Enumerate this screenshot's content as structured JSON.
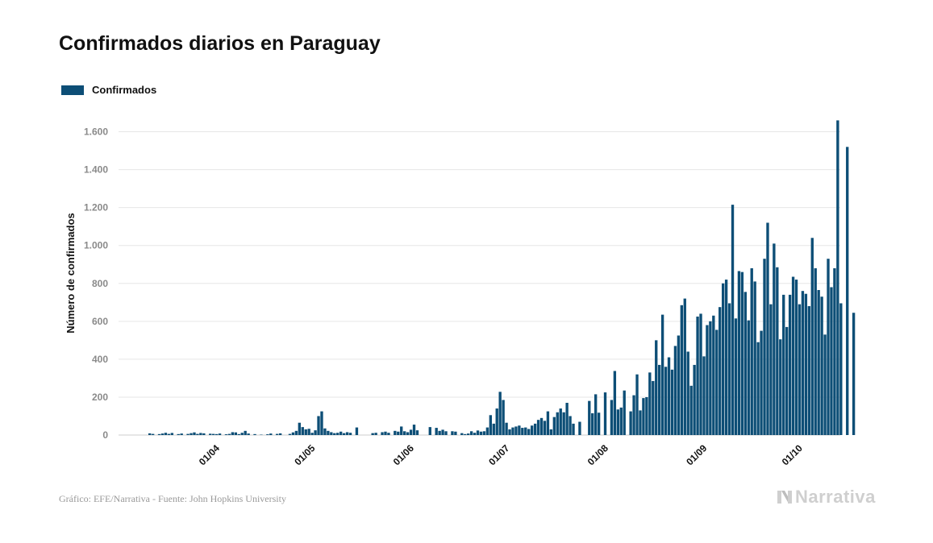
{
  "chart_data": {
    "type": "bar",
    "title": "Confirmados diarios en Paraguay",
    "ylabel": "Número de confirmados",
    "xlabel": "",
    "ylim": [
      0,
      1700
    ],
    "yticks": [
      0,
      200,
      400,
      600,
      800,
      1000,
      1200,
      1400,
      1600
    ],
    "ytick_labels": [
      "0",
      "200",
      "400",
      "600",
      "800",
      "1.000",
      "1.200",
      "1.400",
      "1.600"
    ],
    "x_start": "2020-03-10",
    "xticks": [
      {
        "date": "2020-04-01",
        "label": "01/04"
      },
      {
        "date": "2020-05-01",
        "label": "01/05"
      },
      {
        "date": "2020-06-01",
        "label": "01/06"
      },
      {
        "date": "2020-07-01",
        "label": "01/07"
      },
      {
        "date": "2020-08-01",
        "label": "01/08"
      },
      {
        "date": "2020-09-01",
        "label": "01/09"
      },
      {
        "date": "2020-10-01",
        "label": "01/10"
      }
    ],
    "grid": true,
    "legend_position": "top-left",
    "color": "#0d4e76",
    "series": [
      {
        "name": "Confirmados",
        "values": [
          9,
          6,
          0,
          5,
          8,
          12,
          6,
          11,
          0,
          5,
          8,
          0,
          6,
          10,
          14,
          6,
          11,
          9,
          0,
          7,
          6,
          5,
          8,
          0,
          4,
          6,
          15,
          14,
          5,
          12,
          22,
          8,
          0,
          5,
          0,
          2,
          0,
          4,
          8,
          0,
          6,
          9,
          0,
          0,
          6,
          14,
          22,
          65,
          42,
          30,
          33,
          12,
          25,
          100,
          125,
          35,
          22,
          15,
          10,
          12,
          18,
          10,
          15,
          12,
          0,
          40,
          0,
          0,
          0,
          0,
          10,
          12,
          0,
          15,
          18,
          12,
          0,
          22,
          18,
          45,
          20,
          15,
          28,
          55,
          25,
          0,
          0,
          0,
          42,
          0,
          38,
          22,
          28,
          20,
          0,
          20,
          18,
          0,
          10,
          5,
          8,
          20,
          12,
          24,
          18,
          20,
          40,
          105,
          60,
          140,
          228,
          185,
          65,
          30,
          40,
          45,
          50,
          38,
          40,
          32,
          50,
          60,
          80,
          90,
          75,
          125,
          30,
          95,
          120,
          140,
          120,
          170,
          100,
          60,
          0,
          70,
          0,
          0,
          180,
          115,
          215,
          118,
          0,
          225,
          0,
          185,
          338,
          135,
          145,
          235,
          0,
          125,
          210,
          320,
          130,
          195,
          200,
          330,
          285,
          500,
          370,
          635,
          360,
          410,
          345,
          470,
          525,
          685,
          720,
          440,
          260,
          370,
          625,
          640,
          415,
          580,
          600,
          630,
          555,
          675,
          800,
          820,
          695,
          1215,
          615,
          865,
          860,
          755,
          605,
          880,
          810,
          490,
          550,
          930,
          1120,
          690,
          1010,
          885,
          505,
          740,
          570,
          740,
          835,
          820,
          690,
          760,
          745,
          680,
          1040,
          880,
          765,
          730,
          530,
          930,
          780,
          880,
          1660,
          695,
          0,
          1520,
          0,
          645
        ]
      }
    ]
  },
  "legend": {
    "label": "Confirmados",
    "color": "#0d4e76"
  },
  "source": "Gráfico: EFE/Narrativa - Fuente: John Hopkins University",
  "logo": {
    "text": "Narrativa",
    "icon": "narrativa-n-logo-icon"
  }
}
